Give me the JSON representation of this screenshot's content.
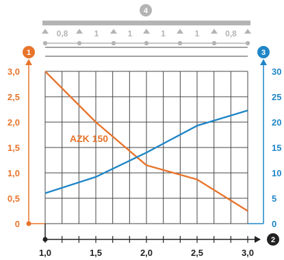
{
  "colors": {
    "left_axis": "#e8742b",
    "right_axis": "#1f86c7",
    "x_axis": "#222222",
    "support": "#b4b4b4",
    "grid": "#444444"
  },
  "badges": {
    "left": "1",
    "bottom": "2",
    "right": "3",
    "top": "4"
  },
  "spans": [
    "0,8",
    "1",
    "1",
    "1",
    "1",
    "0,8"
  ],
  "chart_data": {
    "type": "line",
    "x_ticks": [
      "1,0",
      "1,5",
      "2,0",
      "2,5",
      "3,0"
    ],
    "y_left_ticks": [
      "0",
      "0,5",
      "1,0",
      "1,5",
      "2,0",
      "2,5",
      "3,0"
    ],
    "y_right_ticks": [
      "0",
      "5",
      "10",
      "15",
      "20",
      "25",
      "30"
    ],
    "xlim": [
      1.0,
      3.0
    ],
    "ylim_left": [
      0,
      3.0
    ],
    "ylim_right": [
      0,
      30
    ],
    "grid": true,
    "series": [
      {
        "name": "AZK 150",
        "axis": "left",
        "x": [
          1.0,
          1.5,
          2.0,
          2.5,
          3.0
        ],
        "values": [
          3.0,
          2.0,
          1.15,
          0.87,
          0.25
        ]
      },
      {
        "axis": "right",
        "x": [
          1.0,
          1.5,
          2.0,
          2.5,
          3.0
        ],
        "values": [
          6.0,
          9.2,
          14.0,
          19.3,
          22.3
        ]
      }
    ]
  }
}
